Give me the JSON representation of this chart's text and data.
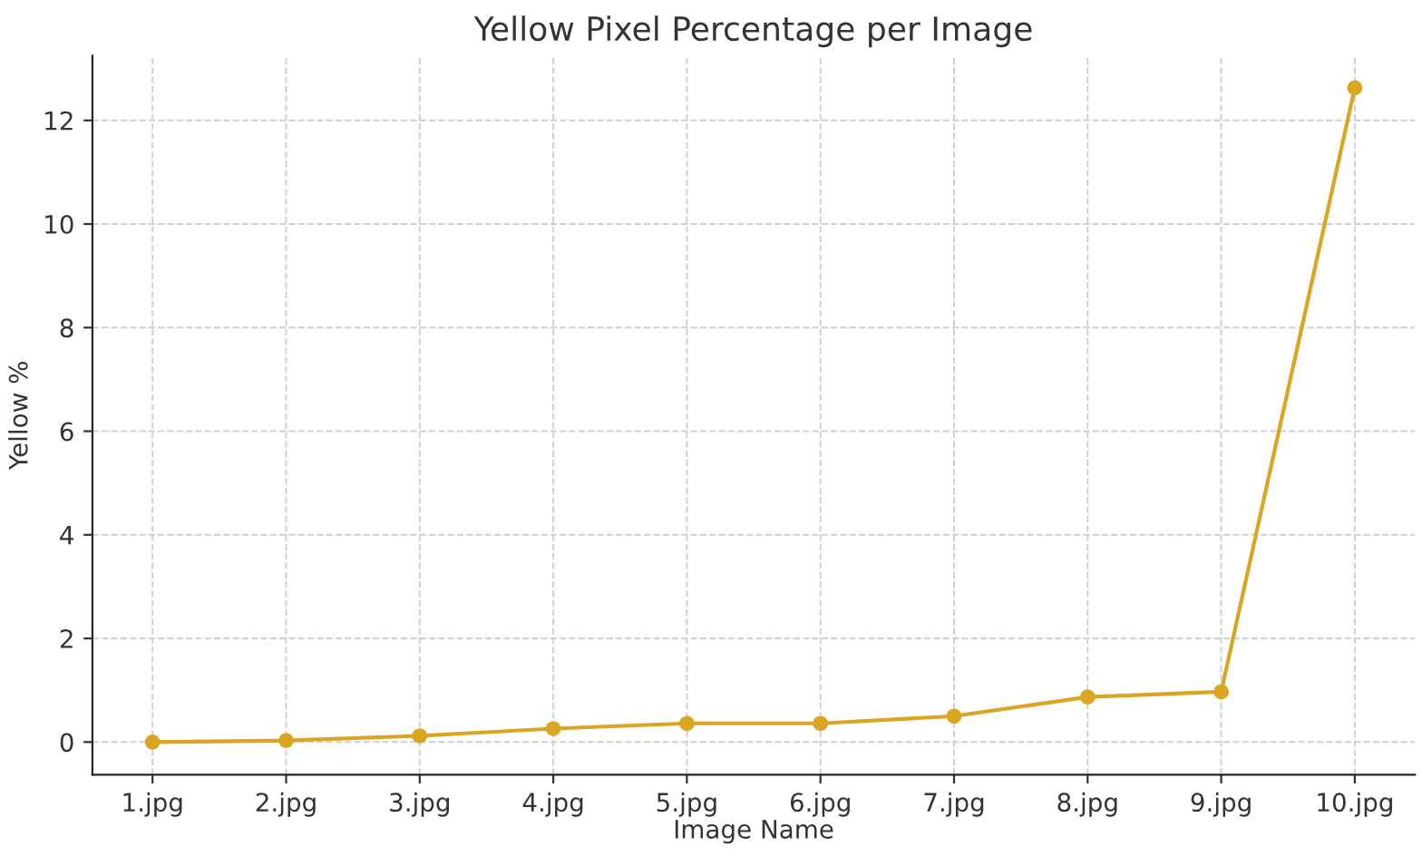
{
  "chart_data": {
    "type": "line",
    "title": "Yellow Pixel Percentage per Image",
    "xlabel": "Image Name",
    "ylabel": "Yellow %",
    "categories": [
      "1.jpg",
      "2.jpg",
      "3.jpg",
      "4.jpg",
      "5.jpg",
      "6.jpg",
      "7.jpg",
      "8.jpg",
      "9.jpg",
      "10.jpg"
    ],
    "series": [
      {
        "color": "#daa520",
        "values": [
          0.0,
          0.03,
          0.12,
          0.26,
          0.36,
          0.36,
          0.5,
          0.87,
          0.97,
          12.63
        ]
      }
    ],
    "ylim": [
      -0.63,
      13.25
    ],
    "yticks": [
      0,
      2,
      4,
      6,
      8,
      10,
      12
    ],
    "grid": true,
    "marker": "circle",
    "line_style": "solid"
  }
}
